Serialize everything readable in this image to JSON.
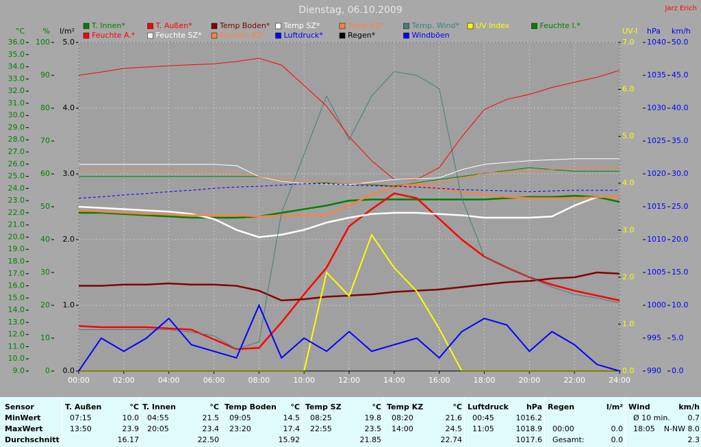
{
  "chart_data": {
    "type": "line",
    "title": "Dienstag, 06.10.2009",
    "author": "Jarz Erich",
    "x": [
      0,
      1,
      2,
      3,
      4,
      5,
      6,
      7,
      8,
      9,
      10,
      11,
      12,
      13,
      14,
      15,
      16,
      17,
      18,
      19,
      20,
      21,
      22,
      23,
      24
    ],
    "xlim": [
      0,
      24
    ],
    "xticks": [
      {
        "value": 0,
        "label": "00:00"
      },
      {
        "value": 2,
        "label": "02:00"
      },
      {
        "value": 4,
        "label": "04:00"
      },
      {
        "value": 6,
        "label": "06:00"
      },
      {
        "value": 8,
        "label": "08:00"
      },
      {
        "value": 10,
        "label": "10:00"
      },
      {
        "value": 12,
        "label": "12:00"
      },
      {
        "value": 14,
        "label": "14:00"
      },
      {
        "value": 16,
        "label": "16:00"
      },
      {
        "value": 18,
        "label": "18:00"
      },
      {
        "value": 20,
        "label": "20:00"
      },
      {
        "value": 22,
        "label": "22:00"
      },
      {
        "value": 24,
        "label": "24:00"
      }
    ],
    "xgrid": true,
    "y_axes": [
      {
        "label": "°C",
        "color": "#008000",
        "ylim": [
          9,
          36
        ],
        "yticks": [
          {
            "value": 9,
            "label": "9.0"
          },
          {
            "value": 10,
            "label": "10.0"
          },
          {
            "value": 11,
            "label": "11.0"
          },
          {
            "value": 12,
            "label": "12.0"
          },
          {
            "value": 13,
            "label": "13.0"
          },
          {
            "value": 14,
            "label": "14.0"
          },
          {
            "value": 15,
            "label": "15.0"
          },
          {
            "value": 16,
            "label": "16.0"
          },
          {
            "value": 17,
            "label": "17.0"
          },
          {
            "value": 18,
            "label": "18.0"
          },
          {
            "value": 19,
            "label": "19.0"
          },
          {
            "value": 20,
            "label": "20.0"
          },
          {
            "value": 21,
            "label": "21.0"
          },
          {
            "value": 22,
            "label": "22.0"
          },
          {
            "value": 23,
            "label": "23.0"
          },
          {
            "value": 24,
            "label": "24.0"
          },
          {
            "value": 25,
            "label": "25.0"
          },
          {
            "value": 26,
            "label": "26.0"
          },
          {
            "value": 27,
            "label": "27.0"
          },
          {
            "value": 28,
            "label": "28.0"
          },
          {
            "value": 29,
            "label": "29.0"
          },
          {
            "value": 30,
            "label": "30.0"
          },
          {
            "value": 31,
            "label": "31.0"
          },
          {
            "value": 32,
            "label": "32.0"
          },
          {
            "value": 33,
            "label": "33.0"
          },
          {
            "value": 34,
            "label": "34.0"
          },
          {
            "value": 35,
            "label": "35.0"
          },
          {
            "value": 36,
            "label": "36.0"
          }
        ]
      },
      {
        "label": "%",
        "color": "#008000",
        "ylim": [
          0,
          100
        ],
        "yticks": [
          0,
          10,
          20,
          30,
          40,
          50,
          60,
          70,
          80,
          90,
          100
        ]
      },
      {
        "label": "l/m²",
        "color": "#000000",
        "ylim": [
          0,
          5
        ],
        "grid": true,
        "yticks": [
          {
            "value": 0,
            "label": "0.0"
          },
          {
            "value": 1,
            "label": "1.0"
          },
          {
            "value": 2,
            "label": "2.0"
          },
          {
            "value": 3,
            "label": "3.0"
          },
          {
            "value": 4,
            "label": "4.0"
          },
          {
            "value": 5,
            "label": "5.0"
          }
        ]
      },
      {
        "label": "UV-I",
        "color": "#ffff00",
        "ylim": [
          0,
          7
        ],
        "yticks": [
          {
            "value": 0,
            "label": "0.0"
          },
          {
            "value": 1,
            "label": "1.0"
          },
          {
            "value": 2,
            "label": "2.0"
          },
          {
            "value": 3,
            "label": "3.0"
          },
          {
            "value": 4,
            "label": "4.0"
          },
          {
            "value": 5,
            "label": "5.0"
          },
          {
            "value": 6,
            "label": "6.0"
          },
          {
            "value": 7,
            "label": "7.0"
          }
        ]
      },
      {
        "label": "hPa",
        "color": "#0000ff",
        "ylim": [
          990,
          1040
        ],
        "yticks": [
          990,
          995,
          1000,
          1005,
          1010,
          1015,
          1020,
          1025,
          1030,
          1035,
          1040
        ]
      },
      {
        "label": "km/h",
        "color": "#0000ff",
        "ylim": [
          0,
          50
        ],
        "yticks": [
          {
            "value": 0,
            "label": "0.0"
          },
          {
            "value": 5,
            "label": "5.0"
          },
          {
            "value": 10,
            "label": "10.0"
          },
          {
            "value": 15,
            "label": "15.0"
          },
          {
            "value": 20,
            "label": "20.0"
          },
          {
            "value": 25,
            "label": "25.0"
          },
          {
            "value": 30,
            "label": "30.0"
          },
          {
            "value": 35,
            "label": "35.0"
          },
          {
            "value": 40,
            "label": "40.0"
          },
          {
            "value": 45,
            "label": "45.0"
          },
          {
            "value": 50,
            "label": "50.0"
          }
        ]
      }
    ],
    "series": [
      {
        "name": "T. Innen*",
        "color": "#008000",
        "axis": 0,
        "line_width": 2.5,
        "values": [
          22.0,
          22.0,
          21.9,
          21.8,
          21.7,
          21.6,
          21.6,
          21.6,
          21.7,
          22.0,
          22.3,
          22.6,
          23.0,
          23.1,
          23.1,
          23.1,
          23.1,
          23.1,
          23.1,
          23.2,
          23.3,
          23.3,
          23.4,
          23.3,
          22.9
        ]
      },
      {
        "name": "T. Außen*",
        "color": "#ff0000",
        "axis": 0,
        "line_width": 2.5,
        "values": [
          12.7,
          12.6,
          12.6,
          12.6,
          12.5,
          12.4,
          11.6,
          10.8,
          10.9,
          13.0,
          15.3,
          17.5,
          20.9,
          22.3,
          23.6,
          23.2,
          21.5,
          19.8,
          18.4,
          17.5,
          16.7,
          16.1,
          15.6,
          15.2,
          14.8
        ]
      },
      {
        "name": "Temp Boden*",
        "color": "#800000",
        "axis": 0,
        "line_width": 2.5,
        "values": [
          16.0,
          16.0,
          16.1,
          16.1,
          16.2,
          16.1,
          16.1,
          16.0,
          15.6,
          14.8,
          14.9,
          15.1,
          15.2,
          15.3,
          15.5,
          15.6,
          15.7,
          15.9,
          16.1,
          16.3,
          16.4,
          16.6,
          16.7,
          17.1,
          17.0
        ]
      },
      {
        "name": "Temp SZ*",
        "color": "#ffffff",
        "axis": 0,
        "line_width": 2.5,
        "values": [
          22.5,
          22.4,
          22.3,
          22.2,
          22.1,
          21.9,
          21.5,
          20.6,
          20.0,
          20.2,
          20.6,
          21.2,
          21.6,
          21.9,
          22.0,
          22.0,
          21.9,
          21.8,
          21.6,
          21.6,
          21.6,
          21.7,
          22.6,
          23.3,
          23.3
        ]
      },
      {
        "name": "Temp KZ*",
        "color": "#ff8040",
        "axis": 0,
        "line_width": 2.5,
        "values": [
          22.2,
          22.1,
          22.0,
          21.9,
          21.9,
          21.8,
          21.8,
          21.8,
          21.7,
          21.8,
          21.8,
          21.8,
          22.6,
          23.5,
          24.1,
          24.3,
          24.0,
          23.7,
          23.5,
          23.3,
          23.2,
          23.2,
          23.2,
          23.3,
          23.3
        ]
      },
      {
        "name": "Temp. Wind*",
        "color": "#408080",
        "axis": 0,
        "line_width": 1,
        "values": [
          12.4,
          12.4,
          12.4,
          12.4,
          12.4,
          12.2,
          11.9,
          10.8,
          11.4,
          22.0,
          26.8,
          31.6,
          28.0,
          31.6,
          33.6,
          33.3,
          32.2,
          23.2,
          18.4,
          17.5,
          16.7,
          15.9,
          15.3,
          15.0,
          14.6
        ]
      },
      {
        "name": "UV Index",
        "color": "#ffff00",
        "axis": 3,
        "line_width": 2,
        "values": [
          0,
          0,
          0,
          0,
          0,
          0,
          0,
          0,
          0,
          0,
          0.0,
          2.1,
          1.6,
          2.9,
          2.2,
          1.7,
          0.9,
          0,
          0,
          0,
          0,
          0,
          0,
          0,
          0
        ]
      },
      {
        "name": "Feuchte I.*",
        "color": "#008000",
        "axis": 1,
        "line_width": 1,
        "values": [
          59.2,
          59.2,
          59.2,
          59.2,
          59.2,
          59.2,
          59.2,
          59.2,
          59.2,
          57.7,
          57.1,
          57.3,
          57.1,
          56.7,
          56.3,
          57.3,
          58.3,
          59.2,
          60.2,
          61.0,
          61.9,
          61.3,
          60.8,
          60.8,
          60.8
        ]
      },
      {
        "name": "Feuchte A.*",
        "color": "#ff0000",
        "axis": 1,
        "line_width": 1,
        "values": [
          90.0,
          91.0,
          92.1,
          92.5,
          92.9,
          93.2,
          93.5,
          94.2,
          95.2,
          93.1,
          86.9,
          80.6,
          71.3,
          64.0,
          58.3,
          58.3,
          61.9,
          71.3,
          79.6,
          82.7,
          84.2,
          86.3,
          87.9,
          89.4,
          91.5
        ]
      },
      {
        "name": "Feuchte SZ*",
        "color": "#ffffff",
        "axis": 1,
        "line_width": 1,
        "values": [
          62.9,
          62.9,
          62.9,
          62.9,
          62.9,
          62.9,
          62.9,
          62.5,
          59.2,
          57.7,
          57.1,
          56.9,
          56.7,
          57.5,
          58.3,
          58.5,
          58.8,
          61.3,
          62.9,
          63.5,
          64.0,
          64.3,
          64.6,
          64.6,
          64.6
        ]
      },
      {
        "name": "Feuchte KZ*",
        "color": "#ff8040",
        "axis": 1,
        "line_width": 1,
        "values": [
          61.3,
          61.3,
          61.3,
          61.3,
          61.3,
          61.0,
          60.8,
          60.4,
          59.2,
          58.3,
          57.9,
          57.5,
          57.1,
          56.9,
          56.7,
          56.9,
          57.1,
          58.3,
          60.4,
          60.6,
          60.8,
          61.3,
          61.9,
          61.9,
          61.9
        ]
      },
      {
        "name": "Luftdruck*",
        "color": "#0000ff",
        "axis": 4,
        "line_width": 1,
        "dashed": true,
        "values": [
          1016.3,
          1016.5,
          1016.8,
          1017.0,
          1017.3,
          1017.5,
          1017.8,
          1018.0,
          1018.1,
          1018.3,
          1018.5,
          1018.5,
          1018.3,
          1018.2,
          1018.1,
          1018.0,
          1017.8,
          1017.6,
          1017.5,
          1017.4,
          1017.3,
          1017.4,
          1017.5,
          1017.5,
          1017.5
        ]
      },
      {
        "name": "Regen*",
        "color": "#000000",
        "axis": 2,
        "line_width": 1,
        "values": [
          0,
          0,
          0,
          0,
          0,
          0,
          0,
          0,
          0,
          0,
          0,
          0,
          0,
          0,
          0,
          0,
          0,
          0,
          0,
          0,
          0,
          0,
          0,
          0,
          0
        ]
      },
      {
        "name": "Windböen",
        "color": "#0000ff",
        "axis": 5,
        "line_width": 2,
        "values": [
          0,
          5,
          3,
          5,
          8,
          4,
          3,
          2,
          10,
          2,
          5,
          3,
          6,
          3,
          4,
          5,
          2,
          6,
          8,
          7,
          3,
          6,
          4,
          1,
          0
        ]
      }
    ]
  },
  "summary": {
    "row_labels": [
      "Sensor",
      "MinWert",
      "MaxWert",
      "Durchschnitt"
    ],
    "columns": [
      {
        "sensor": "T. Außen",
        "unit": "°C",
        "cells": [
          [
            "07:15",
            "10.0"
          ],
          [
            "13:50",
            "23.9"
          ],
          [
            null,
            "16.17"
          ]
        ]
      },
      {
        "sensor": "T. Innen",
        "unit": "°C",
        "cells": [
          [
            "04:55",
            "21.5"
          ],
          [
            "20:05",
            "23.4"
          ],
          [
            null,
            "22.50"
          ]
        ]
      },
      {
        "sensor": "Temp Boden",
        "unit": "°C",
        "cells": [
          [
            "09:05",
            "14.5"
          ],
          [
            "23:20",
            "17.4"
          ],
          [
            null,
            "15.92"
          ]
        ]
      },
      {
        "sensor": "Temp SZ",
        "unit": "°C",
        "cells": [
          [
            "08:25",
            "19.8"
          ],
          [
            "22:55",
            "23.5"
          ],
          [
            null,
            "21.85"
          ]
        ]
      },
      {
        "sensor": "Temp KZ",
        "unit": "°C",
        "cells": [
          [
            "08:20",
            "21.6"
          ],
          [
            "14:00",
            "24.5"
          ],
          [
            null,
            "22.74"
          ]
        ]
      },
      {
        "sensor": "Luftdruck",
        "unit": "hPa",
        "cells": [
          [
            "00:45",
            "1016.2"
          ],
          [
            "11:05",
            "1018.9"
          ],
          [
            null,
            "1017.6"
          ]
        ]
      },
      {
        "sensor": "Regen",
        "unit": "l/m²",
        "cells": [
          [
            null,
            null
          ],
          [
            "00:00",
            "0.0"
          ],
          [
            "Gesamt:",
            "0.0"
          ]
        ]
      },
      {
        "sensor": "Wind",
        "unit": "km/h",
        "cells": [
          [
            "Ø 10 min.",
            "0.7"
          ],
          [
            "18:05",
            "N-NW 8.0"
          ],
          [
            null,
            "2.3"
          ]
        ]
      }
    ]
  }
}
